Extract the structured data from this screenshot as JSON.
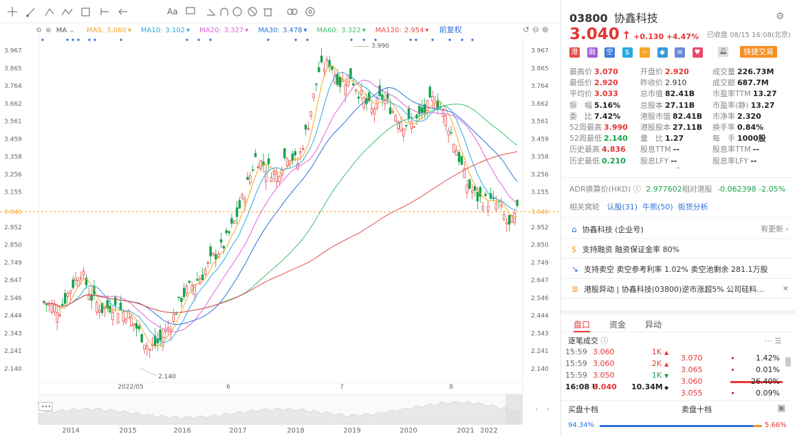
{
  "toolbar": {
    "font_label": "Aa"
  },
  "ma": {
    "ma_label": "MA",
    "items": [
      {
        "label": "MA5:",
        "value": "3.060",
        "color": "#f5a623"
      },
      {
        "label": "MA10:",
        "value": "3.102",
        "color": "#2aa8e0"
      },
      {
        "label": "MA20:",
        "value": "3.327",
        "color": "#e060d8"
      },
      {
        "label": "MA30:",
        "value": "3.478",
        "color": "#2a6fdb"
      },
      {
        "label": "MA60:",
        "value": "3.322",
        "color": "#3cbf6a"
      },
      {
        "label": "MA120:",
        "value": "2.954",
        "color": "#e64a4a"
      }
    ],
    "adjust": "前复权"
  },
  "chart_data": {
    "type": "candlestick",
    "y_ticks": [
      "3.967",
      "3.865",
      "3.764",
      "3.662",
      "3.561",
      "3.459",
      "3.358",
      "3.256",
      "3.155",
      "3.040",
      "2.952",
      "2.850",
      "2.749",
      "2.647",
      "2.546",
      "2.444",
      "2.343",
      "2.241",
      "2.140"
    ],
    "current_price_tag": "3.040",
    "x_ticks": [
      "2022/05",
      "6",
      "7",
      "8"
    ],
    "high_label": "3.990",
    "low_label": "2.140",
    "ylim": [
      2.08,
      4.02
    ],
    "ma_colors": {
      "ma5": "#f5a623",
      "ma10": "#2aa8e0",
      "ma20": "#e060d8",
      "ma30": "#2a6fdb",
      "ma60": "#3cbf6a",
      "ma120": "#e64a4a"
    },
    "timeline_years": [
      "2014",
      "2015",
      "2016",
      "2017",
      "2018",
      "2019",
      "2020",
      "2021",
      "2022"
    ]
  },
  "quote": {
    "code": "03800",
    "name": "协鑫科技",
    "price": "3.040",
    "arrow": "↑",
    "change": "+0.130",
    "change_pct": "+4.47%",
    "status": "已收盘 08/15 16:08(北京)",
    "quick_trade": "快捷交易",
    "stats": [
      [
        {
          "k": "最高价",
          "v": "3.070",
          "c": "red"
        },
        {
          "k": "开盘价",
          "v": "2.920",
          "c": "red"
        },
        {
          "k": "成交量",
          "v": "226.73M",
          "c": "dark"
        }
      ],
      [
        {
          "k": "最低价",
          "v": "2.920",
          "c": "red"
        },
        {
          "k": "昨收价",
          "v": "2.910",
          "c": "gray"
        },
        {
          "k": "成交额",
          "v": "687.7M",
          "c": "dark"
        }
      ],
      [
        {
          "k": "平均价",
          "v": "3.033",
          "c": "red"
        },
        {
          "k": "总市值",
          "v": "82.41B",
          "c": "dark"
        },
        {
          "k": "市盈率TTM",
          "v": "13.27",
          "c": "dark"
        }
      ],
      [
        {
          "k": "振　幅",
          "v": "5.16%",
          "c": "dark"
        },
        {
          "k": "总股本",
          "v": "27.11B",
          "c": "dark"
        },
        {
          "k": "市盈率(静)",
          "v": "13.27",
          "c": "dark"
        }
      ],
      [
        {
          "k": "委　比",
          "v": "7.42%",
          "c": "dark"
        },
        {
          "k": "港股市值",
          "v": "82.41B",
          "c": "dark"
        },
        {
          "k": "市净率",
          "v": "2.320",
          "c": "dark"
        }
      ],
      [
        {
          "k": "52周最高",
          "v": "3.990",
          "c": "red"
        },
        {
          "k": "港股股本",
          "v": "27.11B",
          "c": "dark"
        },
        {
          "k": "换手率",
          "v": "0.84%",
          "c": "dark"
        }
      ],
      [
        {
          "k": "52周最低",
          "v": "2.140",
          "c": "green"
        },
        {
          "k": "量　比",
          "v": "1.27",
          "c": "dark"
        },
        {
          "k": "每　手",
          "v": "1000股",
          "c": "dark"
        }
      ],
      [
        {
          "k": "历史最高",
          "v": "4.836",
          "c": "red"
        },
        {
          "k": "股息TTM",
          "v": "--",
          "c": "dark"
        },
        {
          "k": "股息率TTM",
          "v": "--",
          "c": "dark"
        }
      ],
      [
        {
          "k": "历史最低",
          "v": "0.210",
          "c": "green"
        },
        {
          "k": "股息LFY",
          "v": "--",
          "c": "dark"
        },
        {
          "k": "股息率LFY",
          "v": "--",
          "c": "dark"
        }
      ]
    ],
    "adr_label": "ADR换算价(HKD)",
    "adr_value": "2.977602",
    "adr_rel": "相对港股",
    "adr_diff": "-0.062398",
    "adr_pct": "-2.05%",
    "related_label": "相关窝轮",
    "related_links": [
      "认股(31)",
      "牛熊(50)",
      "街货分析"
    ],
    "list": [
      {
        "text": "协鑫科技 (企业号)",
        "right": "有更新 ›",
        "icon": "building-icon"
      },
      {
        "text": "支持融资 融资保证金率 80%",
        "right": "",
        "icon": "coin-icon"
      },
      {
        "text": "支持卖空 卖空参考利率 1.02% 卖空池剩余 281.1万股",
        "right": "",
        "icon": "short-icon"
      },
      {
        "text": "港股异动 | 协鑫科技(03800)逆市涨超5% 公司硅料...",
        "right": "✕",
        "icon": "news-icon"
      }
    ],
    "tabs": [
      "盘口",
      "资金",
      "异动"
    ],
    "trades_title": "逐笔成交",
    "trades": [
      {
        "time": "15:59",
        "price": "3.060",
        "vol": "1K",
        "dir": "up"
      },
      {
        "time": "15:59",
        "price": "3.060",
        "vol": "2K",
        "dir": "up"
      },
      {
        "time": "15:59",
        "price": "3.050",
        "vol": "1K",
        "dir": "down"
      },
      {
        "time": "16:08 U",
        "price": "3.040",
        "vol": "10.34M",
        "dir": "neutral"
      }
    ],
    "depth": [
      {
        "price": "3.070",
        "pct": "1.42%"
      },
      {
        "price": "3.065",
        "pct": "0.01%"
      },
      {
        "price": "3.060",
        "pct": "26.40%"
      },
      {
        "price": "3.055",
        "pct": "0.09%"
      }
    ],
    "buy_ten": "买盘十档",
    "sell_ten": "卖盘十档",
    "buy_pct": "94.34%",
    "sell_pct": "5.66%"
  }
}
